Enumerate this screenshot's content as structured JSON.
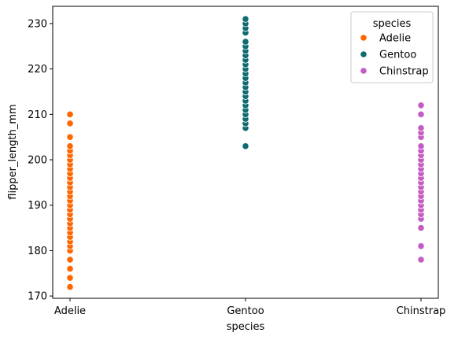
{
  "chart_data": {
    "type": "scatter",
    "xlabel": "species",
    "ylabel": "flipper_length_mm",
    "categories": [
      "Adelie",
      "Gentoo",
      "Chinstrap"
    ],
    "ylim": [
      169.5,
      233.8
    ],
    "yticks": [
      170,
      180,
      190,
      200,
      210,
      220,
      230
    ],
    "grid": false,
    "legend": {
      "title": "species",
      "position": "top-right",
      "entries": [
        "Adelie",
        "Gentoo",
        "Chinstrap"
      ]
    },
    "series": [
      {
        "name": "Adelie",
        "color": "#ff6600",
        "x": "Adelie",
        "values": [
          172,
          174,
          176,
          178,
          180,
          181,
          182,
          183,
          184,
          185,
          186,
          187,
          188,
          189,
          190,
          191,
          192,
          193,
          194,
          195,
          196,
          197,
          198,
          199,
          200,
          201,
          202,
          203,
          205,
          208,
          210
        ]
      },
      {
        "name": "Gentoo",
        "color": "#0f6b6e",
        "x": "Gentoo",
        "values": [
          203,
          207,
          208,
          209,
          210,
          211,
          212,
          213,
          214,
          215,
          216,
          217,
          218,
          219,
          220,
          221,
          222,
          223,
          224,
          225,
          226,
          228,
          229,
          230,
          231
        ]
      },
      {
        "name": "Chinstrap",
        "color": "#c45cc5",
        "x": "Chinstrap",
        "values": [
          178,
          181,
          185,
          187,
          188,
          189,
          190,
          191,
          192,
          193,
          194,
          195,
          196,
          197,
          198,
          199,
          200,
          201,
          202,
          203,
          205,
          206,
          207,
          210,
          212
        ]
      }
    ]
  }
}
